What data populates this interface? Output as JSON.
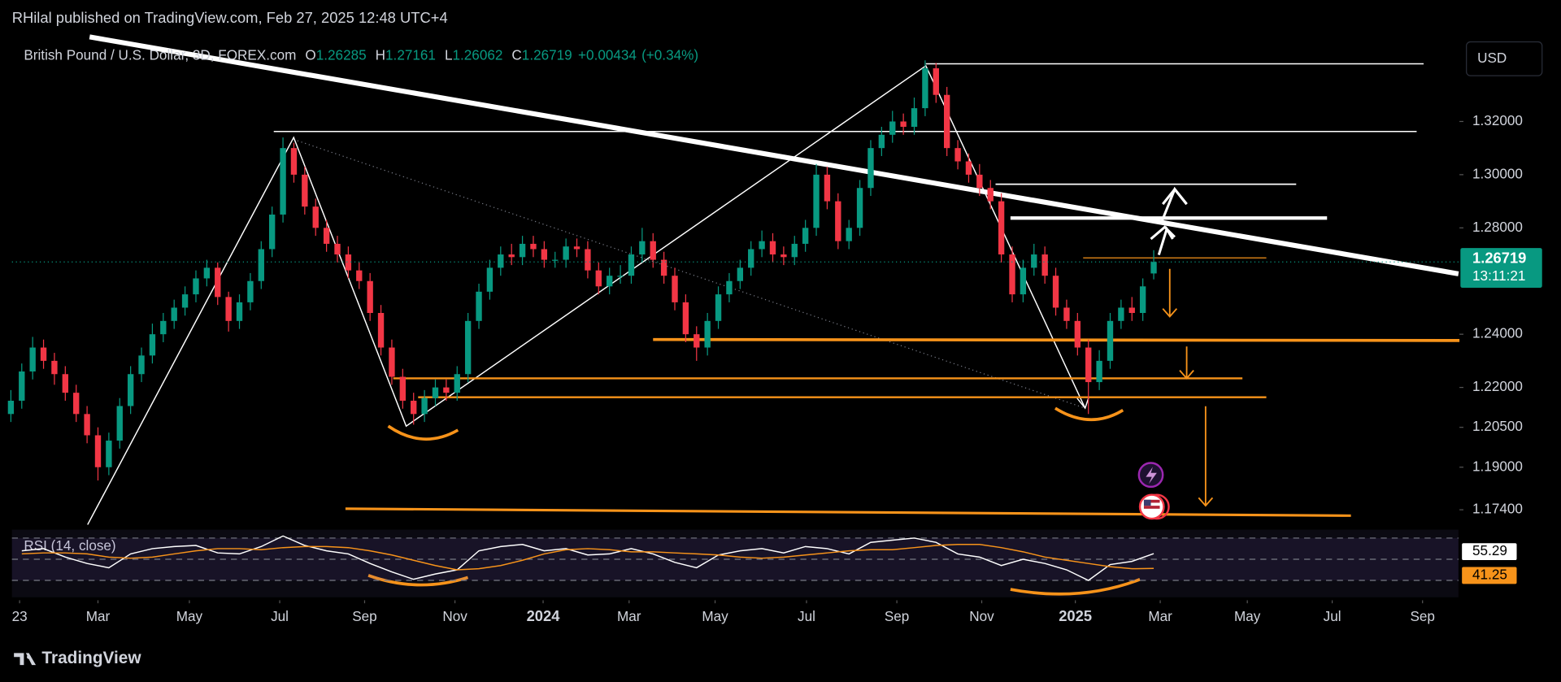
{
  "header": {
    "publisher": "RHilal published on TradingView.com, Feb 27, 2025 12:48 UTC+4",
    "footer": "TradingView"
  },
  "chart_data": [
    {
      "type": "candlestick",
      "title": "British Pound / U.S. Dollar, 3D, FOREX.com",
      "ohlc_letters": [
        "O",
        "H",
        "L",
        "C"
      ],
      "change": "+0.00434",
      "change_pct": "(+0.34%)",
      "currency": "USD",
      "countdown": "13:11:21",
      "colors": {
        "up": "#089981",
        "down": "#f23645"
      },
      "x": [
        1,
        2,
        3,
        4,
        5,
        6,
        7,
        8,
        9,
        10,
        11,
        12,
        13,
        14,
        15,
        16,
        17,
        18,
        19,
        20,
        21,
        22,
        23,
        24,
        25,
        26,
        27,
        28,
        29,
        30,
        31,
        32,
        33,
        34,
        35,
        36,
        37,
        38,
        39,
        40,
        41,
        42,
        43,
        44,
        45,
        46,
        47,
        48,
        49,
        50,
        51,
        52,
        53,
        54,
        55,
        56,
        57,
        58,
        59,
        60,
        61,
        62,
        63,
        64,
        65,
        66,
        67,
        68,
        69,
        70,
        71,
        72,
        73,
        74,
        75,
        76,
        77,
        78,
        79,
        80,
        81,
        82,
        83,
        84,
        85,
        86,
        87,
        88,
        89,
        90,
        91,
        92,
        93,
        94,
        95,
        96,
        97,
        98,
        99,
        100,
        101,
        102,
        103,
        104,
        105,
        106
      ],
      "open": [
        1.21,
        1.215,
        1.226,
        1.235,
        1.23,
        1.225,
        1.218,
        1.21,
        1.202,
        1.19,
        1.2,
        1.213,
        1.225,
        1.232,
        1.24,
        1.245,
        1.25,
        1.255,
        1.261,
        1.265,
        1.254,
        1.245,
        1.252,
        1.26,
        1.272,
        1.285,
        1.31,
        1.3,
        1.288,
        1.28,
        1.274,
        1.27,
        1.264,
        1.26,
        1.248,
        1.235,
        1.224,
        1.215,
        1.21,
        1.216,
        1.22,
        1.218,
        1.225,
        1.245,
        1.256,
        1.265,
        1.27,
        1.269,
        1.274,
        1.272,
        1.268,
        1.268,
        1.273,
        1.272,
        1.264,
        1.258,
        1.262,
        1.262,
        1.27,
        1.275,
        1.268,
        1.262,
        1.252,
        1.24,
        1.235,
        1.245,
        1.255,
        1.26,
        1.265,
        1.272,
        1.275,
        1.27,
        1.269,
        1.274,
        1.28,
        1.3,
        1.29,
        1.275,
        1.28,
        1.295,
        1.31,
        1.315,
        1.32,
        1.318,
        1.325,
        1.34,
        1.33,
        1.31,
        1.305,
        1.3,
        1.295,
        1.29,
        1.27,
        1.255,
        1.265,
        1.27,
        1.262,
        1.25,
        1.245,
        1.235,
        1.222,
        1.23,
        1.245,
        1.25,
        1.248,
        1.26285
      ],
      "high": [
        1.219,
        1.229,
        1.239,
        1.238,
        1.233,
        1.228,
        1.221,
        1.213,
        1.205,
        1.203,
        1.216,
        1.228,
        1.235,
        1.244,
        1.248,
        1.253,
        1.258,
        1.264,
        1.268,
        1.267,
        1.256,
        1.255,
        1.263,
        1.275,
        1.288,
        1.314,
        1.312,
        1.303,
        1.291,
        1.283,
        1.277,
        1.273,
        1.267,
        1.263,
        1.251,
        1.238,
        1.227,
        1.218,
        1.219,
        1.223,
        1.223,
        1.228,
        1.248,
        1.259,
        1.268,
        1.273,
        1.274,
        1.277,
        1.277,
        1.275,
        1.271,
        1.276,
        1.276,
        1.275,
        1.267,
        1.265,
        1.266,
        1.273,
        1.28,
        1.278,
        1.271,
        1.265,
        1.255,
        1.243,
        1.248,
        1.258,
        1.263,
        1.268,
        1.275,
        1.279,
        1.278,
        1.273,
        1.277,
        1.283,
        1.304,
        1.303,
        1.293,
        1.283,
        1.298,
        1.313,
        1.318,
        1.324,
        1.323,
        1.329,
        1.343,
        1.342,
        1.333,
        1.313,
        1.308,
        1.304,
        1.298,
        1.293,
        1.273,
        1.268,
        1.274,
        1.273,
        1.265,
        1.253,
        1.248,
        1.238,
        1.234,
        1.248,
        1.253,
        1.254,
        1.261,
        1.27161
      ],
      "low": [
        1.207,
        1.212,
        1.223,
        1.227,
        1.221,
        1.215,
        1.207,
        1.199,
        1.185,
        1.187,
        1.197,
        1.21,
        1.222,
        1.229,
        1.237,
        1.242,
        1.247,
        1.252,
        1.258,
        1.251,
        1.241,
        1.242,
        1.249,
        1.257,
        1.269,
        1.282,
        1.297,
        1.285,
        1.277,
        1.271,
        1.267,
        1.261,
        1.257,
        1.245,
        1.232,
        1.221,
        1.212,
        1.206,
        1.207,
        1.213,
        1.215,
        1.215,
        1.222,
        1.242,
        1.253,
        1.262,
        1.266,
        1.266,
        1.269,
        1.265,
        1.265,
        1.265,
        1.269,
        1.261,
        1.255,
        1.255,
        1.259,
        1.259,
        1.267,
        1.265,
        1.259,
        1.249,
        1.237,
        1.23,
        1.232,
        1.242,
        1.252,
        1.257,
        1.262,
        1.269,
        1.267,
        1.266,
        1.266,
        1.271,
        1.277,
        1.287,
        1.272,
        1.272,
        1.277,
        1.292,
        1.307,
        1.312,
        1.315,
        1.315,
        1.322,
        1.327,
        1.307,
        1.302,
        1.297,
        1.292,
        1.287,
        1.267,
        1.252,
        1.252,
        1.262,
        1.259,
        1.247,
        1.242,
        1.232,
        1.21,
        1.219,
        1.227,
        1.242,
        1.245,
        1.245,
        1.26062
      ],
      "close": [
        1.215,
        1.226,
        1.235,
        1.23,
        1.225,
        1.218,
        1.21,
        1.202,
        1.19,
        1.2,
        1.213,
        1.225,
        1.232,
        1.24,
        1.245,
        1.25,
        1.255,
        1.261,
        1.265,
        1.254,
        1.245,
        1.252,
        1.26,
        1.272,
        1.285,
        1.31,
        1.3,
        1.288,
        1.28,
        1.274,
        1.27,
        1.264,
        1.26,
        1.248,
        1.235,
        1.224,
        1.215,
        1.21,
        1.216,
        1.22,
        1.218,
        1.225,
        1.245,
        1.256,
        1.265,
        1.27,
        1.269,
        1.274,
        1.272,
        1.268,
        1.268,
        1.273,
        1.272,
        1.264,
        1.258,
        1.262,
        1.262,
        1.27,
        1.275,
        1.268,
        1.262,
        1.252,
        1.24,
        1.235,
        1.245,
        1.255,
        1.26,
        1.265,
        1.272,
        1.275,
        1.27,
        1.269,
        1.274,
        1.28,
        1.3,
        1.29,
        1.275,
        1.28,
        1.295,
        1.31,
        1.315,
        1.32,
        1.318,
        1.325,
        1.34,
        1.33,
        1.31,
        1.305,
        1.3,
        1.295,
        1.29,
        1.27,
        1.255,
        1.265,
        1.27,
        1.262,
        1.25,
        1.245,
        1.235,
        1.222,
        1.23,
        1.245,
        1.25,
        1.248,
        1.258,
        1.26719
      ],
      "xlim": [
        0,
        134
      ],
      "ylim": [
        1.1684,
        1.3518
      ],
      "yticks": [
        {
          "value": 1.32,
          "label": "1.32000"
        },
        {
          "value": 1.3,
          "label": "1.30000"
        },
        {
          "value": 1.28,
          "label": "1.28000"
        },
        {
          "value": 1.24,
          "label": "1.24000"
        },
        {
          "value": 1.22,
          "label": "1.22000"
        },
        {
          "value": 1.205,
          "label": "1.20500"
        },
        {
          "value": 1.19,
          "label": "1.19000"
        },
        {
          "value": 1.174,
          "label": "1.17400"
        }
      ],
      "xticks": [
        {
          "value": 1.8,
          "label": "23"
        },
        {
          "value": 9.0,
          "label": "Mar"
        },
        {
          "value": 17.4,
          "label": "May"
        },
        {
          "value": 25.7,
          "label": "Jul"
        },
        {
          "value": 33.5,
          "label": "Sep"
        },
        {
          "value": 41.8,
          "label": "Nov"
        },
        {
          "value": 49.9,
          "label": "2024"
        },
        {
          "value": 57.8,
          "label": "Mar"
        },
        {
          "value": 65.7,
          "label": "May"
        },
        {
          "value": 74.1,
          "label": "Jul"
        },
        {
          "value": 82.4,
          "label": "Sep"
        },
        {
          "value": 90.2,
          "label": "Nov"
        },
        {
          "value": 98.8,
          "label": "2025"
        },
        {
          "value": 106.6,
          "label": "Mar"
        },
        {
          "value": 114.6,
          "label": "May"
        },
        {
          "value": 122.4,
          "label": "Jul"
        },
        {
          "value": 130.7,
          "label": "Sep"
        }
      ],
      "grid": false
    },
    {
      "type": "line",
      "title": "RSI (14, close)",
      "xlim": [
        0,
        134
      ],
      "ylim": [
        14,
        78
      ],
      "levels": [
        30,
        50,
        70
      ],
      "x": [
        2,
        4,
        6,
        8,
        10,
        12,
        14,
        16,
        18,
        20,
        22,
        24,
        26,
        28,
        30,
        32,
        34,
        36,
        38,
        40,
        42,
        44,
        46,
        48,
        50,
        52,
        54,
        56,
        58,
        60,
        62,
        64,
        66,
        68,
        70,
        72,
        74,
        76,
        78,
        80,
        82,
        84,
        86,
        88,
        90,
        92,
        94,
        96,
        98,
        100,
        102,
        104,
        106
      ],
      "series": [
        {
          "color": "#ffffff",
          "values": [
            58,
            60,
            52,
            46,
            42,
            55,
            60,
            62,
            63,
            56,
            55,
            62,
            72,
            63,
            58,
            55,
            46,
            38,
            31,
            36,
            40,
            58,
            62,
            64,
            58,
            60,
            54,
            55,
            60,
            55,
            47,
            42,
            54,
            58,
            60,
            56,
            62,
            60,
            55,
            66,
            68,
            70,
            66,
            55,
            52,
            44,
            50,
            46,
            40,
            30,
            45,
            48,
            55.29
          ]
        },
        {
          "color": "#f7931a",
          "values": [
            55,
            56,
            56,
            55,
            52,
            51,
            52,
            55,
            58,
            60,
            60,
            59,
            61,
            62,
            62,
            61,
            58,
            54,
            49,
            44,
            40,
            41,
            44,
            49,
            55,
            59,
            60,
            59,
            57,
            57,
            56,
            55,
            54,
            52,
            51,
            52,
            54,
            56,
            58,
            59,
            59,
            61,
            63,
            64,
            64,
            61,
            57,
            52,
            49,
            46,
            43,
            41,
            41.25
          ]
        }
      ]
    }
  ]
}
